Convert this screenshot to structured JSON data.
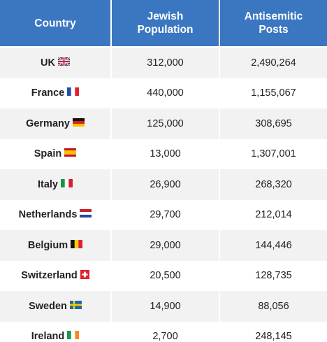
{
  "table": {
    "header": [
      "Country",
      "Jewish Population",
      "Antisemitic Posts"
    ],
    "rows": [
      [
        "UK",
        "312,000",
        "2,490,264"
      ],
      [
        "France",
        "440,000",
        "1,155,067"
      ],
      [
        "Germany",
        "125,000",
        "308,695"
      ],
      [
        "Spain",
        "13,000",
        "1,307,001"
      ],
      [
        "Italy",
        "26,900",
        "268,320"
      ],
      [
        "Netherlands",
        "29,700",
        "212,014"
      ],
      [
        "Belgium",
        "29,000",
        "144,446"
      ],
      [
        "Switzerland",
        "20,500",
        "128,735"
      ],
      [
        "Sweden",
        "14,900",
        "88,056"
      ],
      [
        "Ireland",
        "2,700",
        "248,145"
      ]
    ]
  }
}
